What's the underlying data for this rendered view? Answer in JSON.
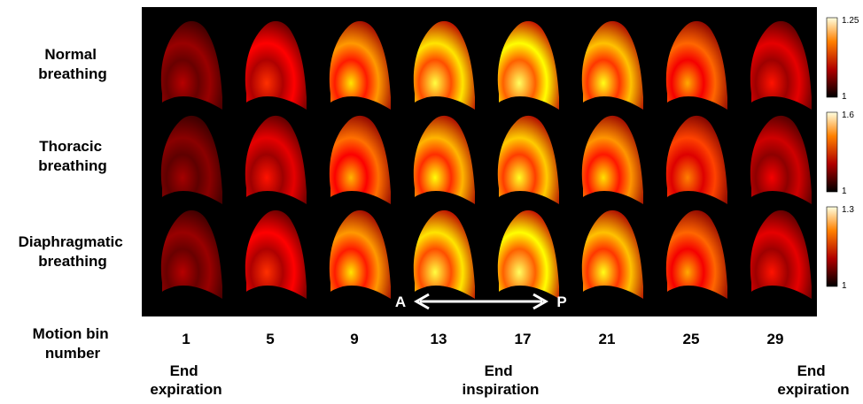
{
  "figure": {
    "rows": [
      "Normal breathing",
      "Thoracic breathing",
      "Diaphragmatic breathing"
    ],
    "row_label_header": "Motion bin number",
    "columns": [
      "1",
      "5",
      "9",
      "13",
      "17",
      "21",
      "25",
      "29"
    ],
    "colorbars": [
      {
        "max": "1.25",
        "min": "1"
      },
      {
        "max": "1.6",
        "min": "1"
      },
      {
        "max": "1.3",
        "min": "1"
      }
    ],
    "arrow": {
      "left": "A",
      "right": "P"
    },
    "phases": [
      {
        "label": "End expiration"
      },
      {
        "label": "End inspiration"
      },
      {
        "label": "End expiration"
      }
    ]
  }
}
